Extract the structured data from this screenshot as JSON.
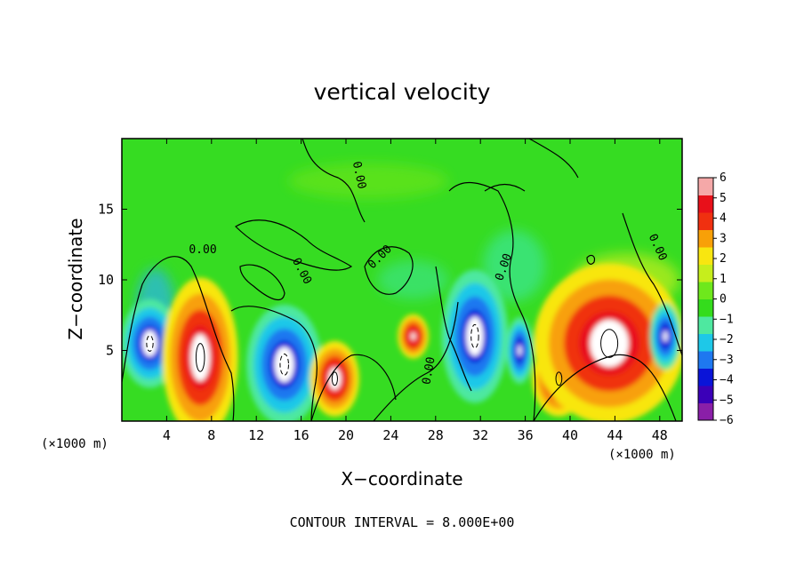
{
  "chart_data": {
    "type": "heatmap",
    "title": "vertical velocity",
    "xlabel": "X−coordinate",
    "ylabel": "Z−coordinate",
    "x_unit_left": "(×1000 m)",
    "x_unit_right": "(×1000 m)",
    "xlim": [
      0,
      50
    ],
    "ylim": [
      0,
      20
    ],
    "x_ticks": [
      4,
      8,
      12,
      16,
      20,
      24,
      28,
      32,
      36,
      40,
      44,
      48
    ],
    "x_tick_labels": [
      "4",
      "8",
      "12",
      "16",
      "20",
      "24",
      "28",
      "32",
      "36",
      "40",
      "44",
      "48"
    ],
    "y_ticks": [
      5,
      10,
      15
    ],
    "y_tick_labels": [
      "5",
      "10",
      "15"
    ],
    "colorbar": {
      "min": -6,
      "max": 6,
      "ticks": [
        6,
        5,
        4,
        3,
        2,
        1,
        0,
        -1,
        -2,
        -3,
        -4,
        -5,
        -6
      ],
      "tick_labels": [
        "6",
        "5",
        "4",
        "3",
        "2",
        "1",
        "0",
        "−1",
        "−2",
        "−3",
        "−4",
        "−5",
        "−6"
      ],
      "colors": [
        "#8a1fa8",
        "#3b00b8",
        "#0a14d8",
        "#1e78f0",
        "#1ec8e8",
        "#4ee8a0",
        "#34dc1c",
        "#6ee81c",
        "#c6ee1c",
        "#f8e610",
        "#f8a008",
        "#f03010",
        "#e8101a",
        "#f5a8a8"
      ]
    },
    "contour_interval_text": "CONTOUR INTERVAL = 8.000E+00",
    "contour_labels": [
      "0.00",
      "0.00",
      "0.00",
      "0.00",
      "0.00",
      "0.00",
      "0.00"
    ],
    "features": [
      {
        "x": 2.5,
        "z": 5.5,
        "w": -7
      },
      {
        "x": 7.0,
        "z": 4.5,
        "w": 8
      },
      {
        "x": 14.5,
        "z": 4.0,
        "w": -8
      },
      {
        "x": 19.0,
        "z": 3.0,
        "w": 7
      },
      {
        "x": 26.0,
        "z": 6.0,
        "w": 4
      },
      {
        "x": 31.5,
        "z": 6.0,
        "w": -7
      },
      {
        "x": 35.5,
        "z": 5.0,
        "w": -4
      },
      {
        "x": 39.0,
        "z": 3.0,
        "w": 7
      },
      {
        "x": 43.5,
        "z": 5.5,
        "w": 8
      },
      {
        "x": 48.5,
        "z": 6.0,
        "w": -6
      }
    ],
    "grid": false
  }
}
